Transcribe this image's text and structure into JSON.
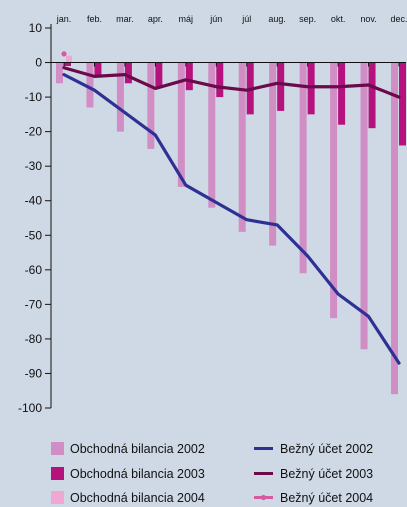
{
  "chart_data": {
    "type": "bar",
    "title": "",
    "xlabel": "",
    "ylabel": "",
    "ylim": [
      -100,
      10
    ],
    "yticks": [
      10,
      0,
      -10,
      -20,
      -30,
      -40,
      -50,
      -60,
      -70,
      -80,
      -90,
      -100
    ],
    "categories": [
      "jan.",
      "feb.",
      "mar.",
      "apr.",
      "máj",
      "jún",
      "júl",
      "aug.",
      "sep.",
      "okt.",
      "nov.",
      "dec."
    ],
    "grid": false,
    "legend_position": "bottom",
    "bar_series": [
      {
        "name": "Obchodná bilancia 2002",
        "color": "#d08ec4",
        "values": [
          -6,
          -13,
          -20,
          -25,
          -36,
          -42,
          -49,
          -53,
          -61,
          -74,
          -83,
          -96
        ]
      },
      {
        "name": "Obchodná bilancia 2003",
        "color": "#b5127e",
        "values": [
          -1,
          -4,
          -6,
          -7,
          -8,
          -10,
          -15,
          -14,
          -15,
          -18,
          -19,
          -24
        ]
      },
      {
        "name": "Obchodná bilancia 2004",
        "color": "#f1a7d3",
        "values": [
          2
        ]
      }
    ],
    "line_series": [
      {
        "name": "Bežný účet 2002",
        "color": "#2e3193",
        "values": [
          -3.5,
          -8,
          -14.5,
          -21,
          -35.5,
          -40.5,
          -45.5,
          -47,
          -56,
          -67,
          -73.5,
          -87
        ]
      },
      {
        "name": "Bežný účet 2003",
        "color": "#6a0a4a",
        "values": [
          -1.5,
          -4,
          -3.5,
          -7.5,
          -5,
          -7,
          -8,
          -6,
          -7,
          -7,
          -6.5,
          -10
        ]
      },
      {
        "name": "Bežný účet 2004",
        "color": "#d55a9e",
        "marker": "dot",
        "values": [
          2.5
        ]
      }
    ]
  }
}
